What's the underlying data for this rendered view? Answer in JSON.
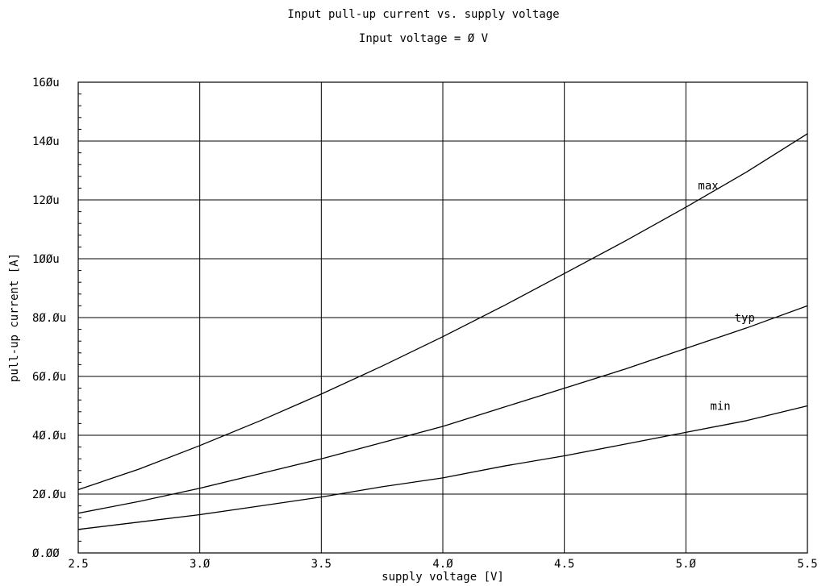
{
  "chart_data": {
    "type": "line",
    "title": "Input pull-up current vs. supply voltage",
    "subtitle": "Input voltage =  Ø V",
    "xlabel": "supply voltage [V]",
    "ylabel": "pull-up current [A]",
    "xlim": [
      2.5,
      5.5
    ],
    "ylim": [
      0,
      160
    ],
    "y_unit": "µA",
    "grid": true,
    "x_ticks": [
      {
        "value": 2.5,
        "label": "2.5"
      },
      {
        "value": 3.0,
        "label": "3.Ø"
      },
      {
        "value": 3.5,
        "label": "3.5"
      },
      {
        "value": 4.0,
        "label": "4.Ø"
      },
      {
        "value": 4.5,
        "label": "4.5"
      },
      {
        "value": 5.0,
        "label": "5.Ø"
      },
      {
        "value": 5.5,
        "label": "5.5"
      }
    ],
    "y_ticks": [
      {
        "value": 0,
        "label": "Ø.ØØ"
      },
      {
        "value": 20,
        "label": "2Ø.Øu"
      },
      {
        "value": 40,
        "label": "4Ø.Øu"
      },
      {
        "value": 60,
        "label": "6Ø.Øu"
      },
      {
        "value": 80,
        "label": "8Ø.Øu"
      },
      {
        "value": 100,
        "label": "1ØØu"
      },
      {
        "value": 120,
        "label": "12Øu"
      },
      {
        "value": 140,
        "label": "14Øu"
      },
      {
        "value": 160,
        "label": "16Øu"
      }
    ],
    "x": [
      2.5,
      2.75,
      3.0,
      3.25,
      3.5,
      3.75,
      4.0,
      4.25,
      4.5,
      4.75,
      5.0,
      5.25,
      5.5
    ],
    "series": [
      {
        "name": "max",
        "label_at": [
          5.05,
          125
        ],
        "values": [
          21.5,
          28.5,
          36.5,
          45,
          54,
          63.5,
          73.5,
          84,
          95,
          106,
          117.5,
          129.5,
          142.5
        ]
      },
      {
        "name": "typ",
        "label_at": [
          5.2,
          80
        ],
        "values": [
          13.5,
          17.5,
          22,
          27,
          32,
          37.5,
          43,
          49.5,
          56,
          62.5,
          69.5,
          76.5,
          84
        ]
      },
      {
        "name": "min",
        "label_at": [
          5.1,
          50
        ],
        "values": [
          8,
          10.5,
          13,
          16,
          19,
          22.5,
          25.5,
          29.5,
          33,
          37,
          41,
          45,
          50
        ]
      }
    ]
  }
}
